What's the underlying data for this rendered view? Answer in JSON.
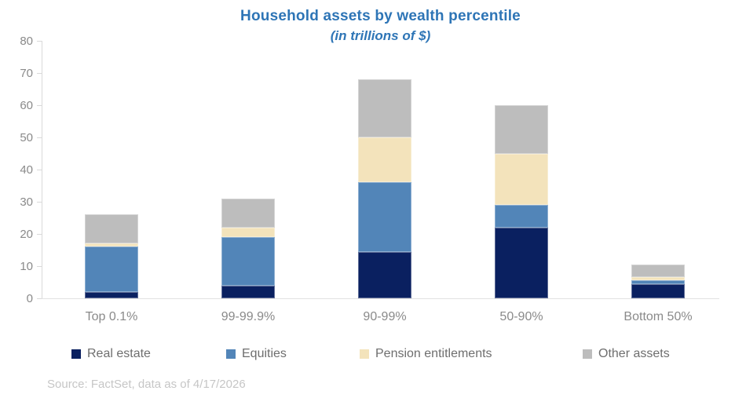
{
  "title": "Household assets by wealth percentile",
  "subtitle": "(in trillions of $)",
  "source_note": "Source: FactSet, data as of 4/17/2026",
  "colors": {
    "title_text": "#2E75B6",
    "axis_text": "#8A8A8A",
    "legend_text": "#6E6E6E",
    "source_text": "#C6C6C6",
    "axis_line": "#D9D9D9"
  },
  "chart_data": {
    "type": "bar",
    "stacked": true,
    "title": "Household assets by wealth percentile",
    "subtitle": "(in trillions of $)",
    "categories": [
      "Top 0.1%",
      "99-99.9%",
      "90-99%",
      "50-90%",
      "Bottom 50%"
    ],
    "series": [
      {
        "name": "Real estate",
        "color": "#0A2060",
        "values": [
          2,
          4,
          14.5,
          22,
          4.5
        ]
      },
      {
        "name": "Equities",
        "color": "#5285B8",
        "values": [
          14,
          15,
          21.5,
          7,
          1
        ]
      },
      {
        "name": "Pension entitlements",
        "color": "#F3E3BB",
        "values": [
          1,
          3,
          14,
          16,
          1
        ]
      },
      {
        "name": "Other assets",
        "color": "#BDBDBD",
        "values": [
          9,
          9,
          18,
          15,
          4
        ]
      }
    ],
    "totals": [
      26,
      31,
      68,
      60,
      10.5
    ],
    "ylabel": "",
    "xlabel": "",
    "ylim": [
      0,
      80
    ],
    "yticks": [
      0,
      10,
      20,
      30,
      40,
      50,
      60,
      70,
      80
    ],
    "grid": false,
    "legend_position": "bottom"
  }
}
